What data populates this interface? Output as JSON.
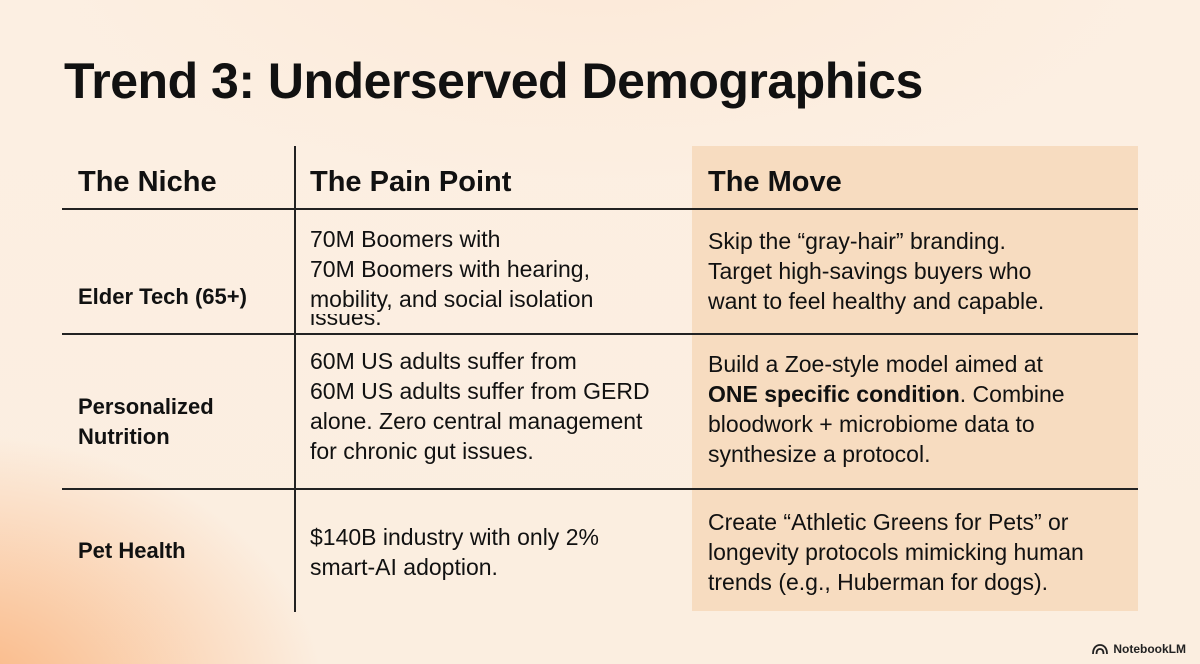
{
  "title": "Trend 3: Underserved Demographics",
  "headers": {
    "niche": "The Niche",
    "pain": "The Pain Point",
    "move": "The Move"
  },
  "rows": [
    {
      "niche": [
        "Elder Tech (65+)"
      ],
      "pain": [
        "70M Boomers with",
        "70M Boomers with hearing,",
        "mobility, and social isolation",
        "issues."
      ],
      "move": [
        "Skip the “gray-hair” branding.",
        "Target high-savings buyers who",
        "want to feel healthy and capable."
      ]
    },
    {
      "niche": [
        "Personalized",
        "Nutrition"
      ],
      "pain": [
        "60M US adults suffer from",
        "60M US adults suffer from GERD",
        "alone. Zero central management",
        "for chronic gut issues."
      ],
      "move_line1": "Build a Zoe-style model aimed at",
      "move_bold": "ONE specific condition",
      "move_after_bold": ". Combine",
      "move_rest": [
        "bloodwork + microbiome data to",
        "synthesize a protocol."
      ]
    },
    {
      "niche": [
        "Pet Health"
      ],
      "pain": [
        "$140B industry with only 2%",
        "smart-AI adoption."
      ],
      "move": [
        "Create “Athletic Greens for Pets” or",
        "longevity protocols mimicking human",
        "trends (e.g., Huberman for dogs)."
      ]
    }
  ],
  "brand": {
    "logo_icon": "notebooklm-logo-icon",
    "name": "NotebookLM"
  }
}
